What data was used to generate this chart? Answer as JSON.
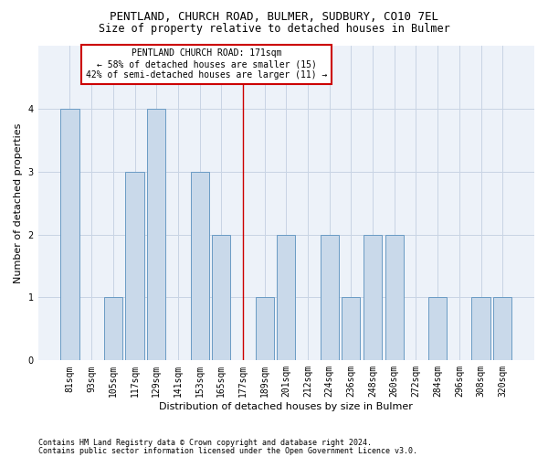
{
  "title1": "PENTLAND, CHURCH ROAD, BULMER, SUDBURY, CO10 7EL",
  "title2": "Size of property relative to detached houses in Bulmer",
  "xlabel": "Distribution of detached houses by size in Bulmer",
  "ylabel": "Number of detached properties",
  "footer1": "Contains HM Land Registry data © Crown copyright and database right 2024.",
  "footer2": "Contains public sector information licensed under the Open Government Licence v3.0.",
  "categories": [
    "81sqm",
    "93sqm",
    "105sqm",
    "117sqm",
    "129sqm",
    "141sqm",
    "153sqm",
    "165sqm",
    "177sqm",
    "189sqm",
    "201sqm",
    "212sqm",
    "224sqm",
    "236sqm",
    "248sqm",
    "260sqm",
    "272sqm",
    "284sqm",
    "296sqm",
    "308sqm",
    "320sqm"
  ],
  "values": [
    4,
    0,
    1,
    3,
    4,
    0,
    3,
    2,
    0,
    1,
    2,
    0,
    2,
    1,
    2,
    2,
    0,
    1,
    0,
    1,
    1
  ],
  "bar_color": "#c9d9ea",
  "bar_edge_color": "#6a9bc4",
  "ref_line_index": 8,
  "ref_line_color": "#cc0000",
  "annotation_text": "PENTLAND CHURCH ROAD: 171sqm\n← 58% of detached houses are smaller (15)\n42% of semi-detached houses are larger (11) →",
  "annotation_box_edge_color": "#cc0000",
  "annotation_text_color": "#000000",
  "ylim": [
    0,
    5
  ],
  "yticks": [
    0,
    1,
    2,
    3,
    4
  ],
  "grid_color": "#c8d4e4",
  "background_color": "#edf2f9",
  "title_fontsize": 9,
  "tick_fontsize": 7,
  "ylabel_fontsize": 8,
  "xlabel_fontsize": 8,
  "annotation_fontsize": 7,
  "footer_fontsize": 6
}
